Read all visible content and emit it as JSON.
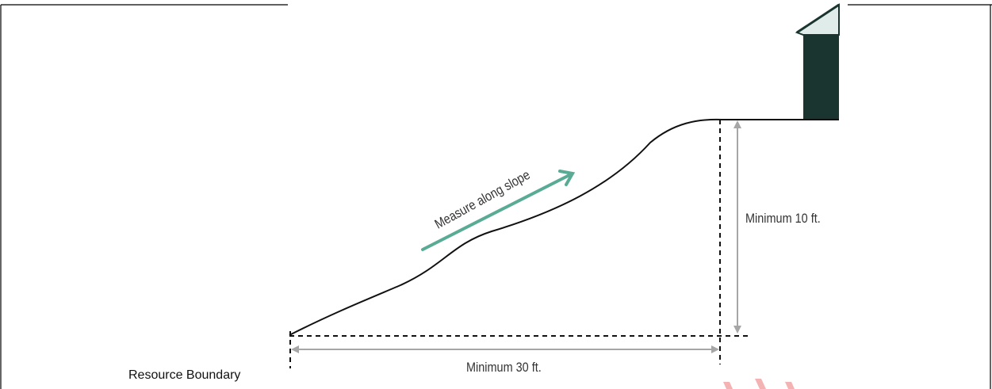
{
  "labels": {
    "slope": "Measure along slope",
    "vertical": "Minimum 10 ft.",
    "horizontal": "Minimum 30 ft.",
    "boundary": "Resource Boundary"
  },
  "colors": {
    "frame": "#000000",
    "slope_arrow": "#5aab95",
    "dimension": "#a6a6a6",
    "house_wall": "#1a3530",
    "house_roof": "#dfece9",
    "watermark": "#f3a6a6"
  }
}
